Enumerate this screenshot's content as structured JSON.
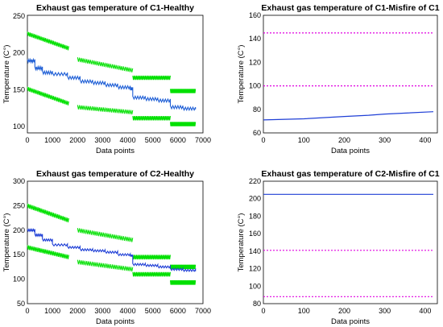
{
  "figure": {
    "panels": [
      {
        "title": "Exhaust gas temperature of C1-Healthy",
        "xlabel": "Data points",
        "ylabel": "Temperature (C°)",
        "xticks": [
          "0",
          "1000",
          "2000",
          "3000",
          "4000",
          "5000",
          "6000",
          "7000"
        ],
        "yticks": [
          "100",
          "150",
          "200",
          "250"
        ]
      },
      {
        "title": "Exhaust gas temperature of C1-Misfire of C1",
        "xlabel": "Data points",
        "ylabel": "Temperature (C°)",
        "xticks": [
          "0",
          "100",
          "200",
          "300",
          "400"
        ],
        "yticks": [
          "60",
          "80",
          "100",
          "120",
          "140",
          "160"
        ]
      },
      {
        "title": "Exhaust gas temperature of C2-Healthy",
        "xlabel": "Data points",
        "ylabel": "Temperature (C°)",
        "xticks": [
          "0",
          "1000",
          "2000",
          "3000",
          "4000",
          "5000",
          "6000",
          "7000"
        ],
        "yticks": [
          "50",
          "100",
          "150",
          "200",
          "250",
          "300"
        ]
      },
      {
        "title": "Exhaust gas temperature of C2-Misfire of C1",
        "xlabel": "Data points",
        "ylabel": "Temperature (C°)",
        "xticks": [
          "0",
          "100",
          "200",
          "300",
          "400"
        ],
        "yticks": [
          "80",
          "100",
          "120",
          "140",
          "160",
          "180",
          "200",
          "220"
        ]
      }
    ]
  },
  "chart_data": [
    {
      "type": "line",
      "title": "Exhaust gas temperature of C1-Healthy",
      "xlabel": "Data points",
      "ylabel": "Temperature (C°)",
      "xlim": [
        0,
        7000
      ],
      "ylim": [
        90,
        250
      ],
      "grid": false,
      "colors": {
        "envelope": "#00e000",
        "mean": "#1f5fd6"
      },
      "series": [
        {
          "role": "upper-envelope",
          "segments": [
            {
              "x": [
                0,
                1650
              ],
              "y": [
                225,
                205
              ]
            },
            {
              "x": [
                2000,
                4200
              ],
              "y": [
                190,
                175
              ]
            },
            {
              "x": [
                4200,
                5700
              ],
              "y": [
                165,
                165
              ]
            },
            {
              "x": [
                5700,
                6700
              ],
              "y": [
                147,
                147
              ]
            }
          ]
        },
        {
          "role": "lower-envelope",
          "segments": [
            {
              "x": [
                0,
                1650
              ],
              "y": [
                150,
                130
              ]
            },
            {
              "x": [
                2000,
                4200
              ],
              "y": [
                125,
                118
              ]
            },
            {
              "x": [
                4200,
                5700
              ],
              "y": [
                110,
                110
              ]
            },
            {
              "x": [
                5700,
                6700
              ],
              "y": [
                102,
                102
              ]
            }
          ]
        },
        {
          "role": "mean",
          "x": [
            0,
            300,
            600,
            1000,
            1600,
            2100,
            2600,
            3100,
            3600,
            4100,
            4200,
            4700,
            5200,
            5700,
            6200,
            6700
          ],
          "y": [
            188,
            178,
            172,
            170,
            165,
            160,
            158,
            155,
            152,
            150,
            138,
            136,
            134,
            125,
            123,
            122
          ]
        }
      ]
    },
    {
      "type": "line",
      "title": "Exhaust gas temperature of C1-Misfire of C1",
      "xlabel": "Data points",
      "ylabel": "Temperature (C°)",
      "xlim": [
        0,
        430
      ],
      "ylim": [
        60,
        160
      ],
      "grid": false,
      "colors": {
        "upper": "#e000e0",
        "middle": "#e000e0",
        "lower": "#1f3fd6"
      },
      "series": [
        {
          "role": "upper",
          "x": [
            0,
            420
          ],
          "y": [
            145,
            145
          ],
          "style": "dashed"
        },
        {
          "role": "middle",
          "x": [
            0,
            420
          ],
          "y": [
            100,
            100
          ],
          "style": "dashed"
        },
        {
          "role": "lower",
          "x": [
            0,
            100,
            200,
            260,
            300,
            420
          ],
          "y": [
            71,
            72,
            74,
            75,
            76,
            78
          ],
          "style": "solid"
        }
      ]
    },
    {
      "type": "line",
      "title": "Exhaust gas temperature of C2-Healthy",
      "xlabel": "Data points",
      "ylabel": "Temperature (C°)",
      "xlim": [
        0,
        7000
      ],
      "ylim": [
        50,
        300
      ],
      "grid": false,
      "colors": {
        "envelope": "#00e000",
        "mean": "#1f3fd6"
      },
      "series": [
        {
          "role": "upper-envelope",
          "segments": [
            {
              "x": [
                0,
                1650
              ],
              "y": [
                250,
                220
              ]
            },
            {
              "x": [
                2000,
                4200
              ],
              "y": [
                200,
                180
              ]
            },
            {
              "x": [
                4200,
                5700
              ],
              "y": [
                145,
                145
              ]
            },
            {
              "x": [
                5700,
                6700
              ],
              "y": [
                125,
                125
              ]
            }
          ]
        },
        {
          "role": "lower-envelope",
          "segments": [
            {
              "x": [
                0,
                1650
              ],
              "y": [
                165,
                145
              ]
            },
            {
              "x": [
                2000,
                4200
              ],
              "y": [
                135,
                120
              ]
            },
            {
              "x": [
                4200,
                5700
              ],
              "y": [
                110,
                110
              ]
            },
            {
              "x": [
                5700,
                6700
              ],
              "y": [
                93,
                93
              ]
            }
          ]
        },
        {
          "role": "mean",
          "x": [
            0,
            300,
            600,
            1000,
            1600,
            2100,
            2600,
            3100,
            3600,
            4100,
            4200,
            4700,
            5200,
            5700,
            6200,
            6700
          ],
          "y": [
            200,
            190,
            180,
            170,
            165,
            160,
            158,
            155,
            150,
            148,
            130,
            128,
            125,
            120,
            118,
            116
          ]
        }
      ]
    },
    {
      "type": "line",
      "title": "Exhaust gas temperature of C2-Misfire of C1",
      "xlabel": "Data points",
      "ylabel": "Temperature (C°)",
      "xlim": [
        0,
        430
      ],
      "ylim": [
        80,
        220
      ],
      "grid": false,
      "colors": {
        "top": "#1f3fd6",
        "middle": "#e000e0",
        "bottom": "#e000e0"
      },
      "series": [
        {
          "role": "top",
          "x": [
            0,
            420
          ],
          "y": [
            205,
            205
          ],
          "style": "solid"
        },
        {
          "role": "middle",
          "x": [
            0,
            420
          ],
          "y": [
            141,
            141
          ],
          "style": "dashed"
        },
        {
          "role": "bottom",
          "x": [
            0,
            420
          ],
          "y": [
            88,
            88
          ],
          "style": "dashed"
        }
      ]
    }
  ]
}
